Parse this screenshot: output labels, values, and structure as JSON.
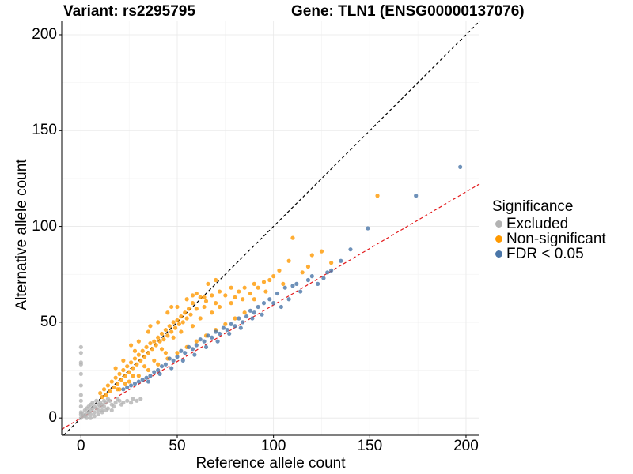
{
  "chart_data": {
    "type": "scatter",
    "title_left": "Variant: rs2295795",
    "title_right": "Gene: TLN1 (ENSG00000137076)",
    "xlabel": "Reference allele count",
    "ylabel": "Alternative allele count",
    "xlim": [
      -10,
      207
    ],
    "ylim": [
      -9,
      207
    ],
    "xticks": [
      0,
      50,
      100,
      150,
      200
    ],
    "yticks": [
      0,
      50,
      100,
      150,
      200
    ],
    "grid": true,
    "legend": {
      "title": "Significance",
      "position": "right",
      "entries": [
        {
          "label": "Excluded",
          "color": "#b3b3b3"
        },
        {
          "label": "Non-significant",
          "color": "#ff9900"
        },
        {
          "label": "FDR < 0.05",
          "color": "#4a76a8"
        }
      ]
    },
    "reference_lines": [
      {
        "name": "identity",
        "slope": 1.0,
        "intercept": 0,
        "color": "#000000",
        "style": "dashed"
      },
      {
        "name": "fit",
        "slope": 0.59,
        "intercept": 0,
        "color": "#e31a1c",
        "style": "dashed"
      }
    ],
    "series": [
      {
        "name": "Excluded",
        "color": "#b3b3b3",
        "points": [
          [
            0,
            37
          ],
          [
            0,
            34
          ],
          [
            0,
            29
          ],
          [
            0,
            28
          ],
          [
            0,
            23
          ],
          [
            0,
            17
          ],
          [
            0,
            12
          ],
          [
            0,
            9
          ],
          [
            0,
            6
          ],
          [
            0,
            3
          ],
          [
            0,
            2
          ],
          [
            0,
            0
          ],
          [
            1,
            1
          ],
          [
            1,
            2
          ],
          [
            2,
            1
          ],
          [
            2,
            4
          ],
          [
            3,
            2
          ],
          [
            3,
            5
          ],
          [
            4,
            3
          ],
          [
            4,
            6
          ],
          [
            5,
            4
          ],
          [
            5,
            7
          ],
          [
            5,
            2
          ],
          [
            6,
            5
          ],
          [
            6,
            8
          ],
          [
            7,
            3
          ],
          [
            7,
            6
          ],
          [
            8,
            5
          ],
          [
            8,
            9
          ],
          [
            9,
            4
          ],
          [
            9,
            7
          ],
          [
            10,
            6
          ],
          [
            10,
            8
          ],
          [
            11,
            7
          ],
          [
            11,
            4
          ],
          [
            12,
            9
          ],
          [
            12,
            6
          ],
          [
            13,
            8
          ],
          [
            14,
            5
          ],
          [
            14,
            10
          ],
          [
            15,
            9
          ],
          [
            16,
            7
          ],
          [
            17,
            6
          ],
          [
            18,
            8
          ],
          [
            19,
            10
          ],
          [
            20,
            9
          ],
          [
            21,
            7
          ],
          [
            22,
            8
          ],
          [
            24,
            9
          ],
          [
            26,
            8
          ],
          [
            27,
            10
          ],
          [
            29,
            9
          ],
          [
            31,
            10
          ],
          [
            3,
            0
          ],
          [
            5,
            0
          ],
          [
            7,
            1
          ],
          [
            9,
            2
          ],
          [
            11,
            3
          ],
          [
            13,
            4
          ],
          [
            16,
            4
          ]
        ]
      },
      {
        "name": "Non-significant",
        "color": "#ff9900",
        "points": [
          [
            154,
            116
          ],
          [
            110,
            94
          ],
          [
            120,
            85
          ],
          [
            125,
            87
          ],
          [
            130,
            81
          ],
          [
            118,
            79
          ],
          [
            115,
            76
          ],
          [
            108,
            82
          ],
          [
            103,
            77
          ],
          [
            100,
            74
          ],
          [
            98,
            72
          ],
          [
            95,
            71
          ],
          [
            92,
            68
          ],
          [
            90,
            70
          ],
          [
            88,
            65
          ],
          [
            85,
            68
          ],
          [
            82,
            66
          ],
          [
            80,
            63
          ],
          [
            78,
            68
          ],
          [
            75,
            64
          ],
          [
            72,
            66
          ],
          [
            70,
            60
          ],
          [
            68,
            64
          ],
          [
            65,
            61
          ],
          [
            64,
            58
          ],
          [
            62,
            63
          ],
          [
            60,
            57
          ],
          [
            58,
            60
          ],
          [
            57,
            54
          ],
          [
            56,
            57
          ],
          [
            55,
            52
          ],
          [
            54,
            55
          ],
          [
            53,
            50
          ],
          [
            52,
            53
          ],
          [
            51,
            49
          ],
          [
            50,
            51
          ],
          [
            49,
            47
          ],
          [
            48,
            50
          ],
          [
            47,
            45
          ],
          [
            46,
            48
          ],
          [
            45,
            43
          ],
          [
            44,
            46
          ],
          [
            43,
            41
          ],
          [
            42,
            44
          ],
          [
            41,
            40
          ],
          [
            40,
            42
          ],
          [
            39,
            38
          ],
          [
            38,
            40
          ],
          [
            37,
            36
          ],
          [
            36,
            39
          ],
          [
            35,
            34
          ],
          [
            34,
            37
          ],
          [
            33,
            32
          ],
          [
            32,
            35
          ],
          [
            31,
            30
          ],
          [
            30,
            33
          ],
          [
            29,
            28
          ],
          [
            28,
            31
          ],
          [
            27,
            26
          ],
          [
            26,
            29
          ],
          [
            25,
            24
          ],
          [
            24,
            27
          ],
          [
            23,
            22
          ],
          [
            22,
            25
          ],
          [
            21,
            20
          ],
          [
            20,
            23
          ],
          [
            19,
            18
          ],
          [
            18,
            21
          ],
          [
            17,
            16
          ],
          [
            16,
            19
          ],
          [
            15,
            14
          ],
          [
            14,
            17
          ],
          [
            13,
            12
          ],
          [
            12,
            15
          ],
          [
            11,
            11
          ],
          [
            10,
            13
          ],
          [
            20,
            15
          ],
          [
            25,
            19
          ],
          [
            30,
            22
          ],
          [
            35,
            25
          ],
          [
            40,
            28
          ],
          [
            45,
            31
          ],
          [
            50,
            34
          ],
          [
            55,
            37
          ],
          [
            60,
            40
          ],
          [
            65,
            43
          ],
          [
            70,
            46
          ],
          [
            75,
            49
          ],
          [
            80,
            52
          ],
          [
            85,
            55
          ],
          [
            35,
            45
          ],
          [
            40,
            50
          ],
          [
            45,
            55
          ],
          [
            50,
            58
          ],
          [
            55,
            62
          ],
          [
            60,
            65
          ],
          [
            66,
            70
          ],
          [
            30,
            40
          ],
          [
            28,
            35
          ],
          [
            42,
            36
          ],
          [
            48,
            42
          ],
          [
            52,
            45
          ],
          [
            58,
            48
          ],
          [
            62,
            52
          ],
          [
            68,
            55
          ],
          [
            72,
            58
          ],
          [
            78,
            60
          ],
          [
            84,
            62
          ],
          [
            90,
            62
          ],
          [
            96,
            66
          ],
          [
            105,
            70
          ],
          [
            44,
            34
          ],
          [
            38,
            30
          ],
          [
            33,
            27
          ],
          [
            27,
            22
          ],
          [
            23,
            18
          ],
          [
            19,
            15
          ],
          [
            64,
            63
          ],
          [
            70,
            72
          ],
          [
            58,
            64
          ],
          [
            47,
            58
          ],
          [
            36,
            48
          ],
          [
            26,
            38
          ],
          [
            22,
            30
          ],
          [
            18,
            26
          ]
        ]
      },
      {
        "name": "FDR < 0.05",
        "color": "#4a76a8",
        "points": [
          [
            197,
            131
          ],
          [
            174,
            116
          ],
          [
            149,
            99
          ],
          [
            140,
            88
          ],
          [
            135,
            82
          ],
          [
            128,
            76
          ],
          [
            120,
            74
          ],
          [
            112,
            70
          ],
          [
            110,
            69
          ],
          [
            106,
            68
          ],
          [
            102,
            65
          ],
          [
            98,
            62
          ],
          [
            95,
            60
          ],
          [
            92,
            58
          ],
          [
            90,
            55
          ],
          [
            88,
            56
          ],
          [
            86,
            53
          ],
          [
            84,
            50
          ],
          [
            82,
            52
          ],
          [
            80,
            48
          ],
          [
            78,
            49
          ],
          [
            76,
            46
          ],
          [
            74,
            47
          ],
          [
            72,
            44
          ],
          [
            70,
            45
          ],
          [
            68,
            42
          ],
          [
            66,
            43
          ],
          [
            64,
            40
          ],
          [
            62,
            41
          ],
          [
            60,
            38
          ],
          [
            58,
            36
          ],
          [
            56,
            37
          ],
          [
            54,
            34
          ],
          [
            52,
            35
          ],
          [
            50,
            32
          ],
          [
            48,
            30
          ],
          [
            46,
            31
          ],
          [
            44,
            28
          ],
          [
            42,
            27
          ],
          [
            40,
            25
          ],
          [
            38,
            24
          ],
          [
            36,
            22
          ],
          [
            34,
            21
          ],
          [
            32,
            20
          ],
          [
            30,
            19
          ],
          [
            28,
            18
          ],
          [
            26,
            17
          ],
          [
            24,
            16
          ],
          [
            22,
            15
          ],
          [
            100,
            60
          ],
          [
            104,
            58
          ],
          [
            108,
            62
          ],
          [
            114,
            66
          ],
          [
            118,
            72
          ],
          [
            123,
            70
          ],
          [
            126,
            73
          ],
          [
            130,
            77
          ],
          [
            94,
            54
          ],
          [
            89,
            52
          ],
          [
            83,
            47
          ],
          [
            77,
            44
          ],
          [
            71,
            40
          ],
          [
            65,
            37
          ],
          [
            59,
            33
          ],
          [
            53,
            30
          ],
          [
            47,
            26
          ],
          [
            41,
            23
          ],
          [
            35,
            19
          ]
        ]
      }
    ]
  }
}
